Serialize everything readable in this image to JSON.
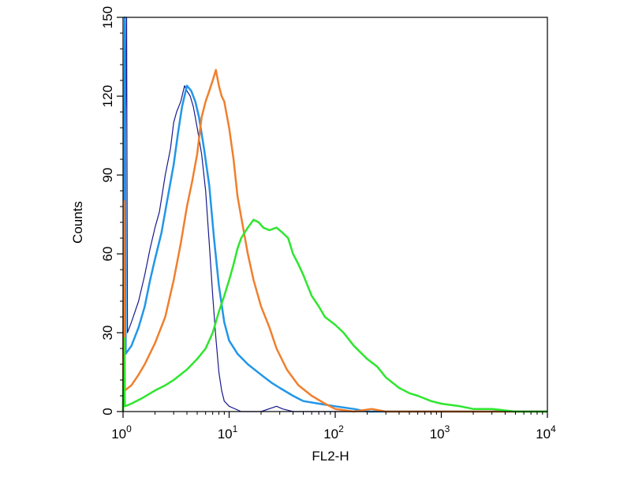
{
  "chart_data": {
    "type": "line",
    "title": "",
    "xlabel": "FL2-H",
    "ylabel": "Counts",
    "x_scale": "log",
    "xlim": [
      1,
      10000
    ],
    "ylim": [
      0,
      150
    ],
    "x_ticks": [
      {
        "value": 1,
        "base": "10",
        "exp": "0"
      },
      {
        "value": 10,
        "base": "10",
        "exp": "1"
      },
      {
        "value": 100,
        "base": "10",
        "exp": "2"
      },
      {
        "value": 1000,
        "base": "10",
        "exp": "3"
      },
      {
        "value": 10000,
        "base": "10",
        "exp": "4"
      }
    ],
    "y_ticks": [
      "0",
      "30",
      "60",
      "90",
      "120",
      "150"
    ],
    "grid": false,
    "legend": "none",
    "series": [
      {
        "color": "#1a1a8c",
        "line_width": 1.2,
        "points": [
          [
            1,
            0
          ],
          [
            1.08,
            150
          ],
          [
            1.1,
            30
          ],
          [
            1.2,
            34
          ],
          [
            1.4,
            42
          ],
          [
            1.6,
            52
          ],
          [
            1.8,
            62
          ],
          [
            2.0,
            70
          ],
          [
            2.2,
            76
          ],
          [
            2.5,
            90
          ],
          [
            2.8,
            100
          ],
          [
            3.0,
            110
          ],
          [
            3.2,
            114
          ],
          [
            3.5,
            118
          ],
          [
            3.8,
            124
          ],
          [
            4.0,
            122
          ],
          [
            4.3,
            120
          ],
          [
            4.6,
            116
          ],
          [
            5.0,
            108
          ],
          [
            5.5,
            98
          ],
          [
            6.0,
            84
          ],
          [
            6.5,
            64
          ],
          [
            7.0,
            44
          ],
          [
            7.5,
            28
          ],
          [
            8.0,
            15
          ],
          [
            8.5,
            8
          ],
          [
            9.0,
            4
          ],
          [
            10,
            2
          ],
          [
            13,
            0
          ],
          [
            20,
            0
          ],
          [
            28,
            2
          ],
          [
            32,
            1
          ],
          [
            40,
            0
          ],
          [
            100,
            0
          ],
          [
            10000,
            0
          ]
        ]
      },
      {
        "color": "#2196e8",
        "line_width": 2.5,
        "points": [
          [
            1,
            0
          ],
          [
            1.04,
            150
          ],
          [
            1.06,
            22
          ],
          [
            1.2,
            25
          ],
          [
            1.4,
            32
          ],
          [
            1.6,
            40
          ],
          [
            1.8,
            50
          ],
          [
            2.0,
            58
          ],
          [
            2.3,
            68
          ],
          [
            2.6,
            80
          ],
          [
            3.0,
            94
          ],
          [
            3.3,
            106
          ],
          [
            3.6,
            116
          ],
          [
            4.0,
            124
          ],
          [
            4.4,
            122
          ],
          [
            4.8,
            118
          ],
          [
            5.2,
            112
          ],
          [
            5.8,
            100
          ],
          [
            6.5,
            86
          ],
          [
            7.2,
            66
          ],
          [
            8.0,
            48
          ],
          [
            9.0,
            34
          ],
          [
            10,
            27
          ],
          [
            12,
            22
          ],
          [
            15,
            18
          ],
          [
            20,
            14
          ],
          [
            25,
            11
          ],
          [
            30,
            9
          ],
          [
            40,
            6
          ],
          [
            50,
            4
          ],
          [
            70,
            3
          ],
          [
            100,
            2
          ],
          [
            150,
            1
          ],
          [
            200,
            0
          ],
          [
            10000,
            0
          ]
        ]
      },
      {
        "color": "#f07f2d",
        "line_width": 2.5,
        "points": [
          [
            1,
            0
          ],
          [
            1.02,
            80
          ],
          [
            1.04,
            8
          ],
          [
            1.2,
            10
          ],
          [
            1.4,
            14
          ],
          [
            1.6,
            18
          ],
          [
            2.0,
            26
          ],
          [
            2.5,
            36
          ],
          [
            3.0,
            50
          ],
          [
            3.5,
            64
          ],
          [
            4.0,
            78
          ],
          [
            4.5,
            88
          ],
          [
            5.0,
            98
          ],
          [
            5.5,
            112
          ],
          [
            6.0,
            118
          ],
          [
            6.5,
            122
          ],
          [
            7.0,
            126
          ],
          [
            7.5,
            130
          ],
          [
            8.0,
            124
          ],
          [
            8.5,
            120
          ],
          [
            9.0,
            118
          ],
          [
            10,
            108
          ],
          [
            11,
            96
          ],
          [
            12,
            82
          ],
          [
            13,
            74
          ],
          [
            15,
            60
          ],
          [
            17,
            50
          ],
          [
            20,
            40
          ],
          [
            24,
            32
          ],
          [
            28,
            24
          ],
          [
            35,
            16
          ],
          [
            45,
            10
          ],
          [
            60,
            6
          ],
          [
            80,
            3
          ],
          [
            100,
            1
          ],
          [
            150,
            0
          ],
          [
            220,
            1
          ],
          [
            300,
            0
          ],
          [
            10000,
            0
          ]
        ]
      },
      {
        "color": "#2ee62e",
        "line_width": 2.5,
        "points": [
          [
            1,
            0
          ],
          [
            1.02,
            28
          ],
          [
            1.04,
            2
          ],
          [
            1.2,
            3
          ],
          [
            1.5,
            5
          ],
          [
            2.0,
            8
          ],
          [
            2.5,
            10
          ],
          [
            3.0,
            12
          ],
          [
            4.0,
            16
          ],
          [
            5.0,
            20
          ],
          [
            6.0,
            24
          ],
          [
            7.0,
            30
          ],
          [
            8.0,
            38
          ],
          [
            9.0,
            44
          ],
          [
            10,
            50
          ],
          [
            11,
            56
          ],
          [
            12,
            62
          ],
          [
            13,
            66
          ],
          [
            15,
            70
          ],
          [
            17,
            73
          ],
          [
            19,
            72
          ],
          [
            21,
            70
          ],
          [
            24,
            69
          ],
          [
            28,
            70
          ],
          [
            32,
            68
          ],
          [
            36,
            66
          ],
          [
            40,
            60
          ],
          [
            45,
            56
          ],
          [
            50,
            52
          ],
          [
            60,
            44
          ],
          [
            70,
            40
          ],
          [
            80,
            36
          ],
          [
            100,
            33
          ],
          [
            120,
            30
          ],
          [
            150,
            25
          ],
          [
            200,
            20
          ],
          [
            250,
            17
          ],
          [
            300,
            13
          ],
          [
            400,
            9
          ],
          [
            500,
            7
          ],
          [
            600,
            6
          ],
          [
            800,
            4
          ],
          [
            1000,
            3
          ],
          [
            1500,
            2
          ],
          [
            2000,
            1
          ],
          [
            3000,
            1
          ],
          [
            5000,
            0
          ],
          [
            10000,
            0
          ]
        ]
      }
    ]
  }
}
